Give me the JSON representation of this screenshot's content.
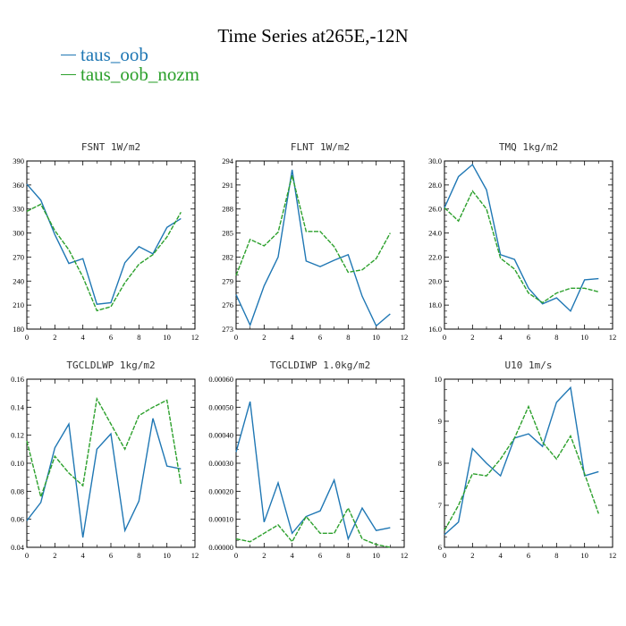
{
  "title": "Time Series at265E,-12N",
  "legend": [
    {
      "name": "taus_oob",
      "color": "#1f77b4"
    },
    {
      "name": "taus_oob_nozm",
      "color": "#2ca02c"
    }
  ],
  "chart_data": [
    {
      "type": "line",
      "title": "FSNT  1W/m2",
      "x": [
        0,
        1,
        2,
        3,
        4,
        5,
        6,
        7,
        8,
        9,
        10,
        11
      ],
      "xlim": [
        0,
        12
      ],
      "xticks": [
        0,
        2,
        4,
        6,
        8,
        10,
        12
      ],
      "ylim": [
        180,
        390
      ],
      "yticks": [
        180,
        210,
        240,
        270,
        300,
        330,
        360,
        390
      ],
      "ytick_labels": [
        "180",
        "210",
        "240",
        "270",
        "300",
        "330",
        "360",
        "390"
      ],
      "series": [
        {
          "name": "taus_oob",
          "values": [
            361,
            341,
            298,
            262,
            268,
            211,
            213,
            263,
            283,
            274,
            307,
            318
          ]
        },
        {
          "name": "taus_oob_nozm",
          "values": [
            327,
            336,
            303,
            279,
            245,
            203,
            208,
            238,
            261,
            273,
            295,
            326
          ]
        }
      ]
    },
    {
      "type": "line",
      "title": "FLNT  1W/m2",
      "x": [
        0,
        1,
        2,
        3,
        4,
        5,
        6,
        7,
        8,
        9,
        10,
        11
      ],
      "xlim": [
        0,
        12
      ],
      "xticks": [
        0,
        2,
        4,
        6,
        8,
        10,
        12
      ],
      "ylim": [
        273,
        294
      ],
      "yticks": [
        273,
        276,
        279,
        282,
        285,
        288,
        291,
        294
      ],
      "ytick_labels": [
        "273",
        "276",
        "279",
        "282",
        "285",
        "288",
        "291",
        "294"
      ],
      "series": [
        {
          "name": "taus_oob",
          "values": [
            277.3,
            273.5,
            278.4,
            282,
            292.9,
            281.5,
            280.8,
            281.6,
            282.3,
            277.1,
            273.4,
            274.9
          ]
        },
        {
          "name": "taus_oob_nozm",
          "values": [
            279.7,
            284.2,
            283.4,
            285.1,
            292.2,
            285.2,
            285.2,
            283.3,
            280.1,
            280.4,
            281.8,
            285
          ]
        }
      ]
    },
    {
      "type": "line",
      "title": "TMQ  1kg/m2",
      "x": [
        0,
        1,
        2,
        3,
        4,
        5,
        6,
        7,
        8,
        9,
        10,
        11
      ],
      "xlim": [
        0,
        12
      ],
      "xticks": [
        0,
        2,
        4,
        6,
        8,
        10,
        12
      ],
      "ylim": [
        16,
        30
      ],
      "yticks": [
        16,
        18,
        20,
        22,
        24,
        26,
        28,
        30
      ],
      "ytick_labels": [
        "16.0",
        "18.0",
        "20.0",
        "22.0",
        "24.0",
        "26.0",
        "28.0",
        "30.0"
      ],
      "series": [
        {
          "name": "taus_oob",
          "values": [
            26.1,
            28.7,
            29.7,
            27.6,
            22.2,
            21.8,
            19.4,
            18.1,
            18.6,
            17.5,
            20.1,
            20.2
          ]
        },
        {
          "name": "taus_oob_nozm",
          "values": [
            26.1,
            25,
            27.5,
            26,
            21.9,
            21,
            19,
            18.2,
            19,
            19.4,
            19.4,
            19.1
          ]
        }
      ]
    },
    {
      "type": "line",
      "title": "TGCLDLWP  1kg/m2",
      "x": [
        0,
        1,
        2,
        3,
        4,
        5,
        6,
        7,
        8,
        9,
        10,
        11
      ],
      "xlim": [
        0,
        12
      ],
      "xticks": [
        0,
        2,
        4,
        6,
        8,
        10,
        12
      ],
      "ylim": [
        0.04,
        0.16
      ],
      "yticks": [
        0.04,
        0.06,
        0.08,
        0.1,
        0.12,
        0.14,
        0.16
      ],
      "ytick_labels": [
        "0.04",
        "0.06",
        "0.08",
        "0.10",
        "0.12",
        "0.14",
        "0.16"
      ],
      "series": [
        {
          "name": "taus_oob",
          "values": [
            0.059,
            0.072,
            0.111,
            0.128,
            0.047,
            0.11,
            0.121,
            0.052,
            0.073,
            0.132,
            0.098,
            0.096
          ]
        },
        {
          "name": "taus_oob_nozm",
          "values": [
            0.116,
            0.076,
            0.105,
            0.093,
            0.084,
            0.146,
            0.128,
            0.11,
            0.134,
            0.14,
            0.145,
            0.085
          ]
        }
      ]
    },
    {
      "type": "line",
      "title": "TGCLDIWP  1.0kg/m2",
      "x": [
        0,
        1,
        2,
        3,
        4,
        5,
        6,
        7,
        8,
        9,
        10,
        11
      ],
      "xlim": [
        0,
        12
      ],
      "xticks": [
        0,
        2,
        4,
        6,
        8,
        10,
        12
      ],
      "ylim": [
        0,
        0.0006
      ],
      "yticks": [
        0,
        0.0001,
        0.0002,
        0.0003,
        0.0004,
        0.0005,
        0.0006
      ],
      "ytick_labels": [
        "0.00000",
        "0.00010",
        "0.00020",
        "0.00030",
        "0.00040",
        "0.00050",
        "0.00060"
      ],
      "series": [
        {
          "name": "taus_oob",
          "values": [
            0.00034,
            0.00052,
            9e-05,
            0.00023,
            5e-05,
            0.00011,
            0.00013,
            0.00024,
            3e-05,
            0.00014,
            6e-05,
            7e-05
          ]
        },
        {
          "name": "taus_oob_nozm",
          "values": [
            3e-05,
            2e-05,
            5e-05,
            8e-05,
            2e-05,
            0.00011,
            5e-05,
            5e-05,
            0.00014,
            3e-05,
            1e-05,
            0.0
          ]
        }
      ]
    },
    {
      "type": "line",
      "title": "U10  1m/s",
      "x": [
        0,
        1,
        2,
        3,
        4,
        5,
        6,
        7,
        8,
        9,
        10,
        11
      ],
      "xlim": [
        0,
        12
      ],
      "xticks": [
        0,
        2,
        4,
        6,
        8,
        10,
        12
      ],
      "ylim": [
        6,
        10
      ],
      "yticks": [
        6,
        7,
        8,
        9,
        10
      ],
      "ytick_labels": [
        "6",
        "7",
        "8",
        "9",
        "10"
      ],
      "series": [
        {
          "name": "taus_oob",
          "values": [
            6.3,
            6.6,
            8.35,
            8.0,
            7.7,
            8.6,
            8.7,
            8.4,
            9.45,
            9.8,
            7.7,
            7.8
          ]
        },
        {
          "name": "taus_oob_nozm",
          "values": [
            6.4,
            7.0,
            7.75,
            7.7,
            8.1,
            8.6,
            9.35,
            8.5,
            8.1,
            8.65,
            7.75,
            6.8
          ]
        }
      ]
    }
  ]
}
